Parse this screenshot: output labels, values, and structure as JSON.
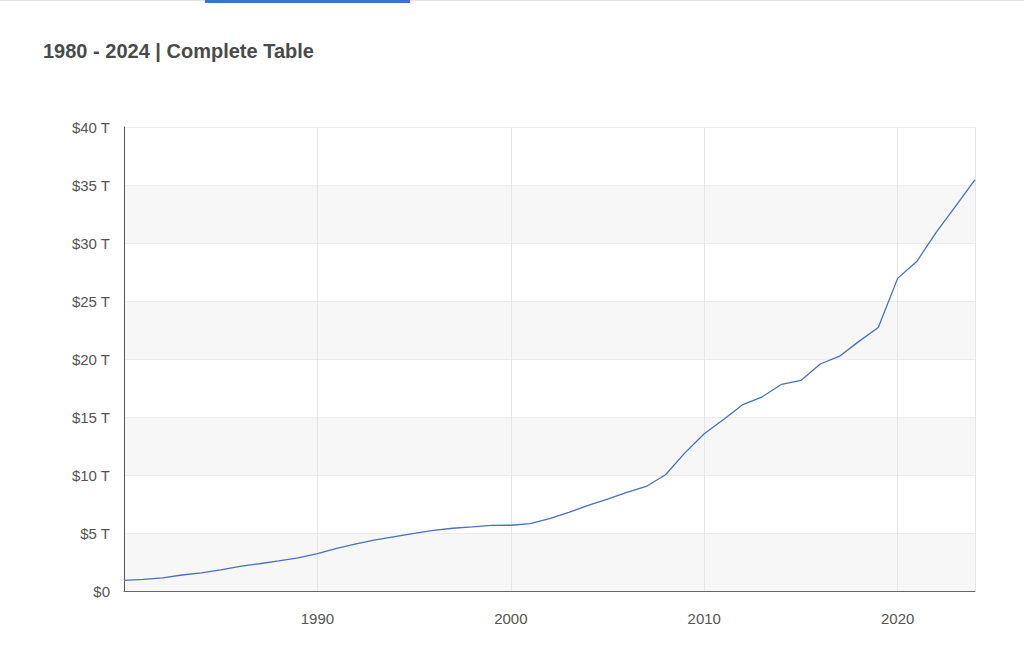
{
  "chart_data": {
    "type": "line",
    "title": "1980 - 2024 | Complete Table",
    "x": [
      1980,
      1981,
      1982,
      1983,
      1984,
      1985,
      1986,
      1987,
      1988,
      1989,
      1990,
      1991,
      1992,
      1993,
      1994,
      1995,
      1996,
      1997,
      1998,
      1999,
      2000,
      2001,
      2002,
      2003,
      2004,
      2005,
      2006,
      2007,
      2008,
      2009,
      2010,
      2011,
      2012,
      2013,
      2014,
      2015,
      2016,
      2017,
      2018,
      2019,
      2020,
      2021,
      2022,
      2023,
      2024
    ],
    "values": [
      0.91,
      1.0,
      1.14,
      1.38,
      1.57,
      1.82,
      2.13,
      2.35,
      2.6,
      2.86,
      3.23,
      3.67,
      4.06,
      4.41,
      4.69,
      4.97,
      5.22,
      5.41,
      5.53,
      5.66,
      5.67,
      5.81,
      6.23,
      6.78,
      7.38,
      7.93,
      8.51,
      9.01,
      10.02,
      11.91,
      13.56,
      14.79,
      16.07,
      16.74,
      17.82,
      18.15,
      19.57,
      20.24,
      21.52,
      22.72,
      26.95,
      28.43,
      30.93,
      33.17,
      35.46
    ],
    "color": "#4a70b8",
    "xlim": [
      1980,
      2024
    ],
    "xticks": [
      1990,
      2000,
      2010,
      2020
    ],
    "ylim": [
      0,
      40
    ],
    "yticks": [
      {
        "value": 0,
        "label": "$0"
      },
      {
        "value": 5,
        "label": "$5 T"
      },
      {
        "value": 10,
        "label": "$10 T"
      },
      {
        "value": 15,
        "label": "$15 T"
      },
      {
        "value": 20,
        "label": "$20 T"
      },
      {
        "value": 25,
        "label": "$25 T"
      },
      {
        "value": 30,
        "label": "$30 T"
      },
      {
        "value": 35,
        "label": "$35 T"
      },
      {
        "value": 40,
        "label": "$40 T"
      }
    ],
    "grid": true
  }
}
